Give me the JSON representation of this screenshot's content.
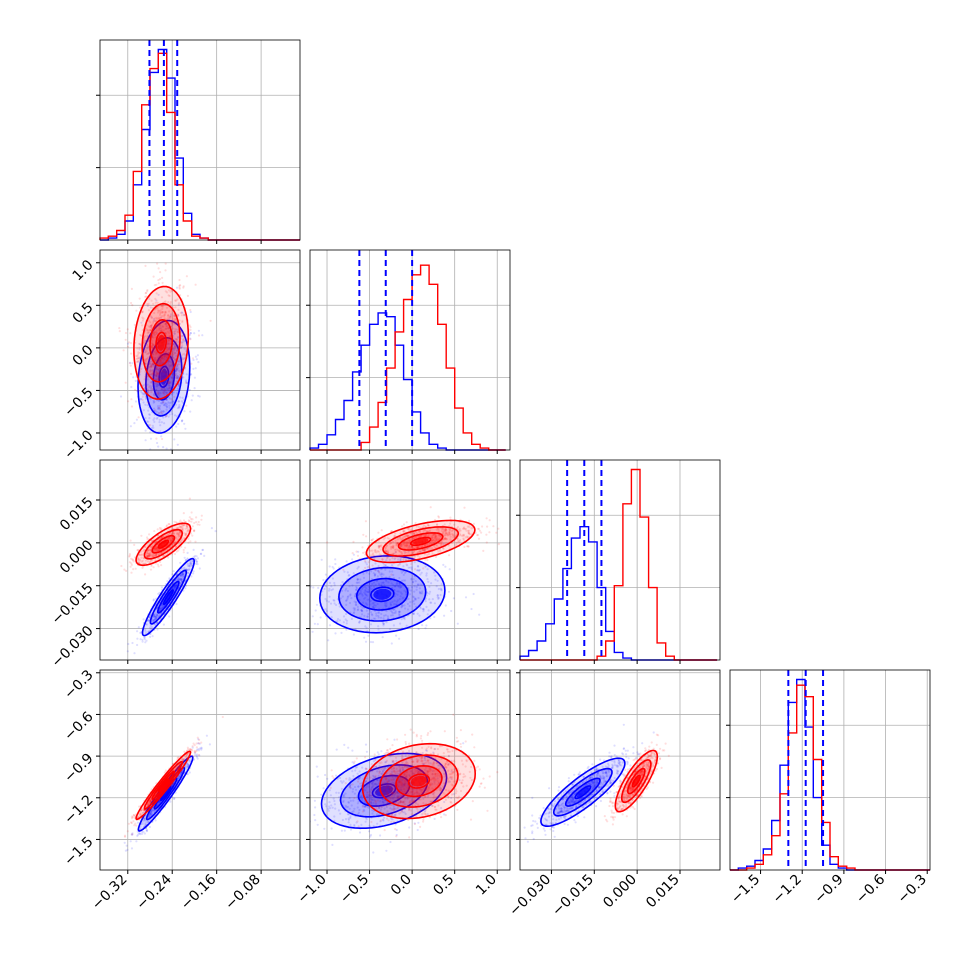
{
  "chart_data": {
    "type": "corner",
    "series": [
      {
        "name": "",
        "color": "#0000ff"
      },
      {
        "name": "",
        "color": "#ff0000"
      }
    ],
    "parameters": [
      {
        "range": [
          -0.37,
          -0.01
        ],
        "ticks": [
          "-0.32",
          "-0.24",
          "-0.16",
          "-0.08"
        ],
        "tick_values": [
          -0.32,
          -0.24,
          -0.16,
          -0.08
        ]
      },
      {
        "range": [
          -1.2,
          1.15
        ],
        "ticks": [
          "-1.0",
          "-0.5",
          "0.0",
          "0.5",
          "1.0"
        ],
        "tick_values": [
          -1.0,
          -0.5,
          0.0,
          0.5,
          1.0
        ]
      },
      {
        "range": [
          -0.041,
          0.029
        ],
        "ticks": [
          "-0.030",
          "-0.015",
          "0.000",
          "0.015"
        ],
        "tick_values": [
          -0.03,
          -0.015,
          0.0,
          0.015
        ]
      },
      {
        "range": [
          -1.72,
          -0.28
        ],
        "ticks": [
          "-1.5",
          "-1.2",
          "-0.9",
          "-0.6",
          "-0.3"
        ],
        "tick_values": [
          -1.5,
          -1.2,
          -0.9,
          -0.6,
          -0.3
        ]
      }
    ],
    "quantiles": [
      [
        -0.281,
        -0.255,
        -0.231
      ],
      [
        -0.62,
        -0.31,
        0.0
      ],
      [
        -0.0245,
        -0.0185,
        -0.0125
      ],
      [
        -1.3,
        -1.175,
        -1.05
      ]
    ],
    "histograms": [
      {
        "bins": [
          -0.37,
          -0.355,
          -0.34,
          -0.325,
          -0.31,
          -0.295,
          -0.28,
          -0.265,
          -0.25,
          -0.235,
          -0.22,
          -0.205,
          -0.19,
          -0.175,
          -0.16,
          -0.145,
          -0.13,
          -0.115,
          -0.1,
          -0.085,
          -0.07,
          -0.055,
          -0.04,
          -0.025,
          -0.01
        ],
        "counts": {
          "blue": [
            0.0,
            0.01,
            0.03,
            0.1,
            0.29,
            0.58,
            0.88,
            1.0,
            0.85,
            0.43,
            0.14,
            0.03,
            0.01,
            0,
            0,
            0,
            0,
            0,
            0,
            0,
            0,
            0,
            0,
            0
          ],
          "red": [
            0.01,
            0.02,
            0.05,
            0.13,
            0.36,
            0.71,
            0.9,
            0.98,
            0.67,
            0.29,
            0.1,
            0.02,
            0.01,
            0,
            0,
            0,
            0,
            0,
            0,
            0,
            0,
            0,
            0,
            0
          ]
        }
      },
      {
        "bins": [
          -1.2,
          -1.1,
          -1.0,
          -0.9,
          -0.8,
          -0.7,
          -0.6,
          -0.5,
          -0.4,
          -0.3,
          -0.2,
          -0.1,
          0.0,
          0.1,
          0.2,
          0.3,
          0.4,
          0.5,
          0.6,
          0.7,
          0.8,
          0.9,
          1.0,
          1.1
        ],
        "counts": {
          "blue": [
            0.01,
            0.03,
            0.08,
            0.16,
            0.26,
            0.41,
            0.55,
            0.66,
            0.72,
            0.7,
            0.55,
            0.37,
            0.2,
            0.09,
            0.03,
            0.01,
            0,
            0,
            0,
            0,
            0,
            0,
            0
          ],
          "red": [
            0,
            0,
            0,
            0,
            0,
            0,
            0.04,
            0.12,
            0.25,
            0.43,
            0.62,
            0.79,
            0.92,
            0.97,
            0.87,
            0.66,
            0.43,
            0.22,
            0.09,
            0.03,
            0.01,
            0,
            0
          ]
        }
      },
      {
        "bins": [
          -0.041,
          -0.038,
          -0.035,
          -0.032,
          -0.029,
          -0.026,
          -0.023,
          -0.02,
          -0.017,
          -0.014,
          -0.011,
          -0.008,
          -0.005,
          -0.002,
          0.001,
          0.004,
          0.007,
          0.01,
          0.013,
          0.016,
          0.019,
          0.022,
          0.025,
          0.028
        ],
        "counts": {
          "blue": [
            0.02,
            0.05,
            0.1,
            0.19,
            0.32,
            0.48,
            0.64,
            0.7,
            0.62,
            0.38,
            0.15,
            0.04,
            0.01,
            0,
            0,
            0,
            0,
            0,
            0,
            0,
            0,
            0,
            0
          ],
          "red": [
            0,
            0,
            0,
            0,
            0,
            0,
            0,
            0,
            0,
            0.02,
            0.1,
            0.39,
            0.82,
            1.0,
            0.75,
            0.38,
            0.09,
            0.02,
            0,
            0,
            0,
            0,
            0
          ]
        }
      },
      {
        "bins": [
          -1.72,
          -1.66,
          -1.6,
          -1.54,
          -1.48,
          -1.42,
          -1.36,
          -1.3,
          -1.24,
          -1.18,
          -1.12,
          -1.06,
          -1.0,
          -0.94,
          -0.88,
          -0.82,
          -0.76,
          -0.7,
          -0.64,
          -0.58,
          -0.52,
          -0.46,
          -0.4,
          -0.34,
          -0.28
        ],
        "counts": {
          "blue": [
            0,
            0.01,
            0.02,
            0.05,
            0.11,
            0.26,
            0.55,
            0.88,
            1.0,
            0.75,
            0.38,
            0.13,
            0.03,
            0.01,
            0,
            0,
            0,
            0,
            0,
            0,
            0,
            0,
            0,
            0
          ],
          "red": [
            0,
            0,
            0.01,
            0.03,
            0.08,
            0.18,
            0.4,
            0.72,
            0.97,
            0.91,
            0.58,
            0.25,
            0.07,
            0.02,
            0.01,
            0,
            0,
            0,
            0,
            0,
            0,
            0,
            0,
            0
          ]
        }
      }
    ],
    "joint": {
      "1-0": {
        "blue": {
          "mean": [
            -0.255,
            -0.34
          ],
          "std": [
            0.019,
            0.27
          ],
          "rho": 0.17
        },
        "red": {
          "mean": [
            -0.26,
            0.06
          ],
          "std": [
            0.02,
            0.27
          ],
          "rho": 0.12
        }
      },
      "2-0": {
        "blue": {
          "mean": [
            -0.247,
            -0.019
          ],
          "std": [
            0.019,
            0.0055
          ],
          "rho": 0.93
        },
        "red": {
          "mean": [
            -0.256,
            -0.0005
          ],
          "std": [
            0.02,
            0.003
          ],
          "rho": 0.75
        }
      },
      "2-1": {
        "blue": {
          "mean": [
            -0.35,
            -0.018
          ],
          "std": [
            0.3,
            0.0055
          ],
          "rho": 0.1
        },
        "red": {
          "mean": [
            0.1,
            0.0005
          ],
          "std": [
            0.26,
            0.003
          ],
          "rho": 0.55
        }
      },
      "3-0": {
        "blue": {
          "mean": [
            -0.252,
            -1.17
          ],
          "std": [
            0.02,
            0.11
          ],
          "rho": 0.96
        },
        "red": {
          "mean": [
            -0.256,
            -1.11
          ],
          "std": [
            0.02,
            0.1
          ],
          "rho": 0.97
        }
      },
      "3-1": {
        "blue": {
          "mean": [
            -0.33,
            -1.15
          ],
          "std": [
            0.3,
            0.11
          ],
          "rho": 0.35
        },
        "red": {
          "mean": [
            0.08,
            -1.08
          ],
          "std": [
            0.27,
            0.11
          ],
          "rho": 0.2
        }
      },
      "3-2": {
        "blue": {
          "mean": [
            -0.019,
            -1.16
          ],
          "std": [
            0.006,
            0.1
          ],
          "rho": 0.85
        },
        "red": {
          "mean": [
            -0.0003,
            -1.08
          ],
          "std": [
            0.003,
            0.09
          ],
          "rho": 0.8
        }
      }
    }
  }
}
